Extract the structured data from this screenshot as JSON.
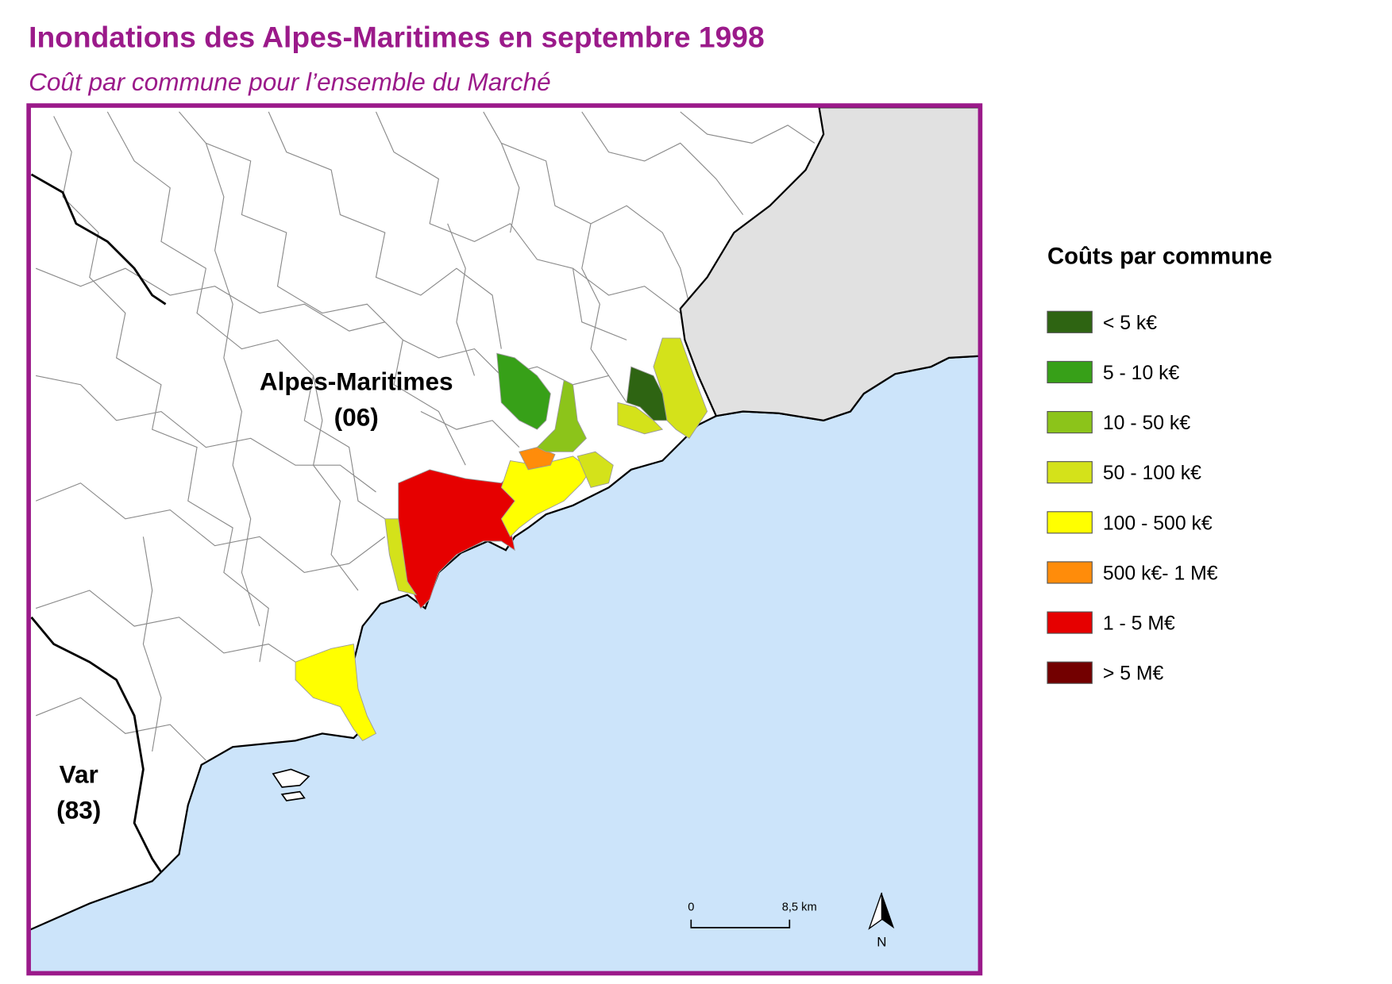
{
  "header": {
    "title": "Inondations des Alpes-Maritimes en septembre 1998",
    "subtitle": "Coût par commune pour l’ensemble du Marché"
  },
  "map": {
    "labels": [
      {
        "name": "Alpes-Maritimes",
        "code": "(06)"
      },
      {
        "name": "Var",
        "code": "(83)"
      }
    ]
  },
  "legend": {
    "title": "Coûts par commune",
    "items": [
      {
        "label": "< 5 k€",
        "color": "#2e6412"
      },
      {
        "label": "5 - 10 k€",
        "color": "#37a018"
      },
      {
        "label": "10 - 50 k€",
        "color": "#8cc41a"
      },
      {
        "label": "50 - 100 k€",
        "color": "#d4e21a"
      },
      {
        "label": "100 - 500 k€",
        "color": "#ffff00"
      },
      {
        "label": "500 k€- 1 M€",
        "color": "#ff8c0a"
      },
      {
        "label": "1 - 5 M€",
        "color": "#e60000"
      },
      {
        "label": "> 5 M€",
        "color": "#730000"
      }
    ]
  },
  "scale_bar": {
    "start": "0",
    "end": "8,5 km"
  },
  "north_arrow": "N"
}
